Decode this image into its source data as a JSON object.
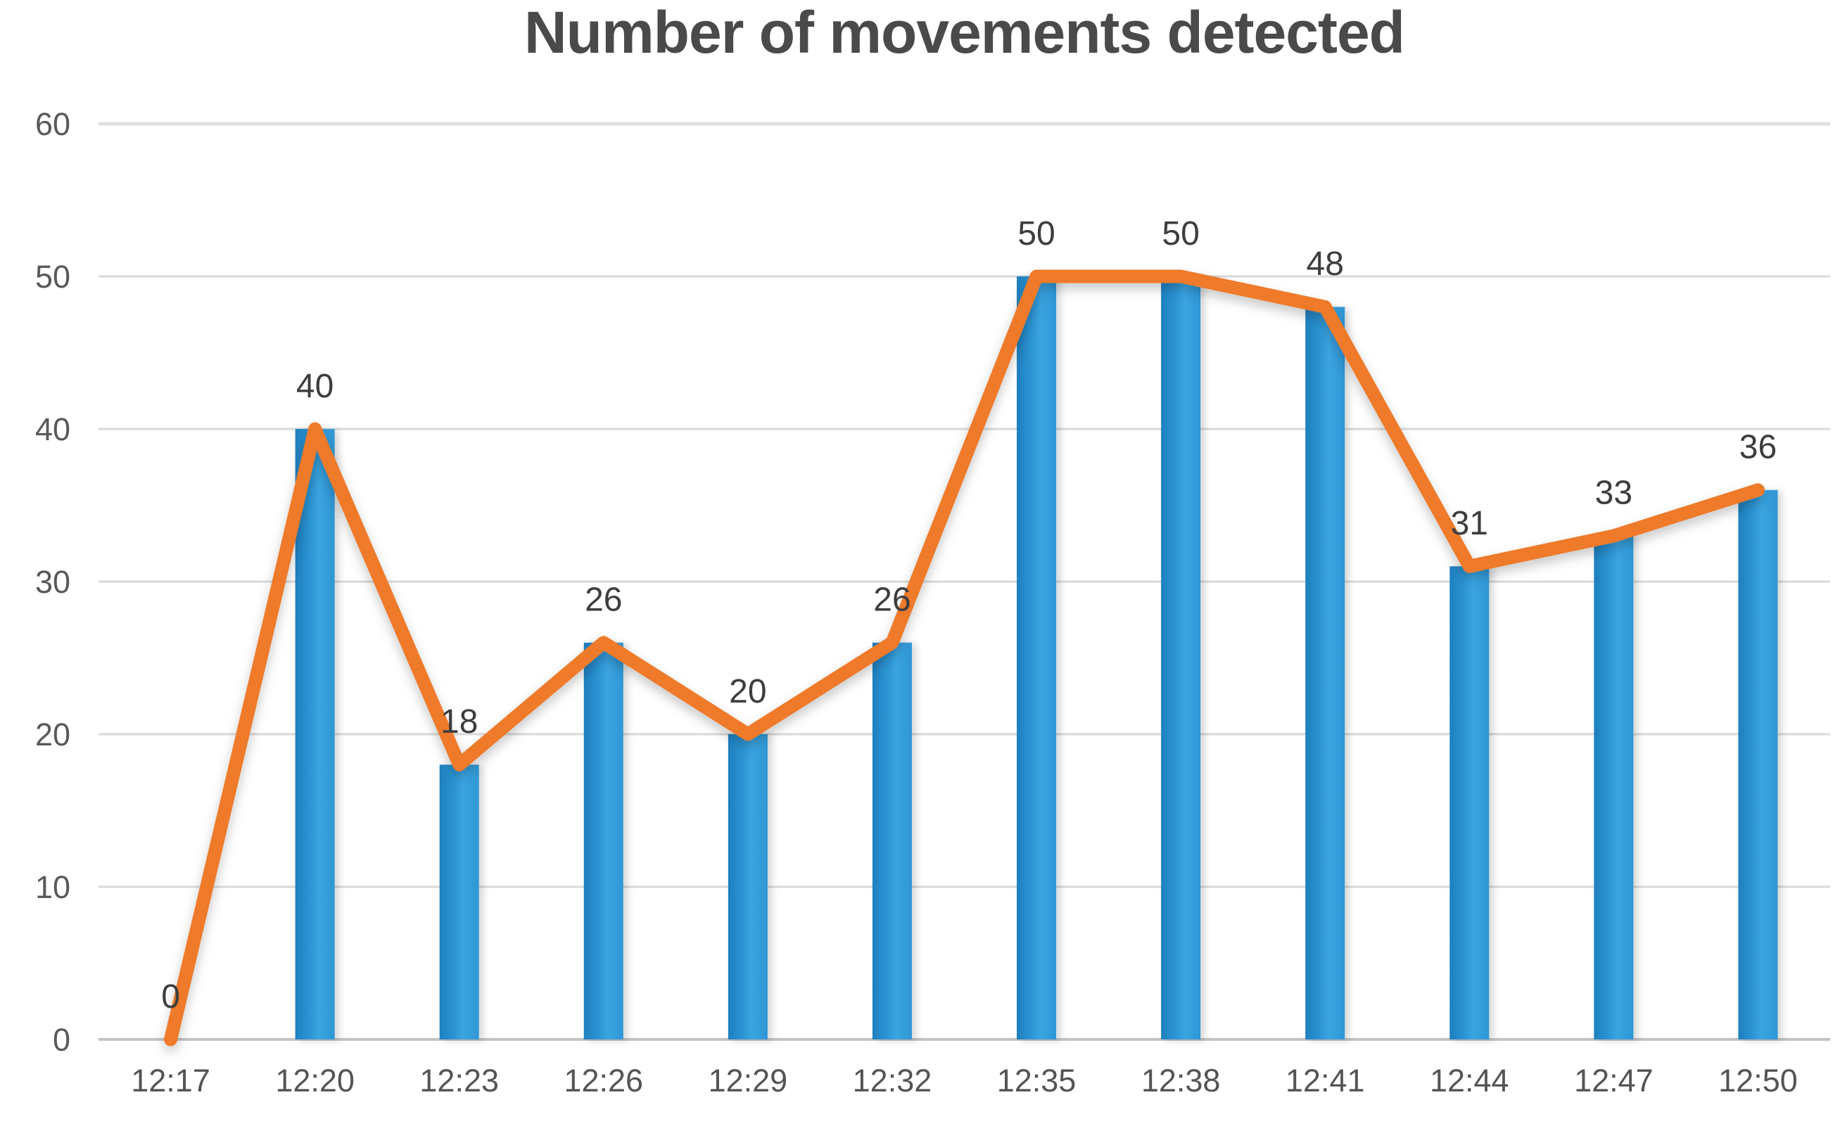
{
  "chart_data": {
    "type": "bar",
    "subtype": "column-with-line-overlay",
    "title": "Number of movements detected",
    "categories": [
      "12:17",
      "12:20",
      "12:23",
      "12:26",
      "12:29",
      "12:32",
      "12:35",
      "12:38",
      "12:41",
      "12:44",
      "12:47",
      "12:50"
    ],
    "series": [
      {
        "name": "movements-bars",
        "type": "bar",
        "values": [
          0,
          40,
          18,
          26,
          20,
          26,
          50,
          50,
          48,
          31,
          33,
          36
        ]
      },
      {
        "name": "movements-line",
        "type": "line",
        "values": [
          0,
          40,
          18,
          26,
          20,
          26,
          50,
          50,
          48,
          31,
          33,
          36
        ]
      }
    ],
    "data_labels": [
      "0",
      "40",
      "18",
      "26",
      "20",
      "26",
      "50",
      "50",
      "48",
      "31",
      "33",
      "36"
    ],
    "xlabel": "",
    "ylabel": "",
    "ylim": [
      0,
      60
    ],
    "yticks": [
      0,
      10,
      20,
      30,
      40,
      50,
      60
    ],
    "grid": true,
    "legend_position": "none",
    "style": {
      "bar_color": "#2E96D5",
      "bar_color_dark": "#1E7FBE",
      "bar_color_light": "#3BA4E0",
      "line_color": "#EE7A2B",
      "grid_color": "#D9D9D9",
      "top_grid_color": "#E0E0E0",
      "axis_line_color": "#C3C3C3",
      "tick_text_color": "#595959",
      "data_label_color": "#3D3D3D",
      "title_color": "#4A4A4A",
      "background": "#FFFFFF"
    }
  }
}
